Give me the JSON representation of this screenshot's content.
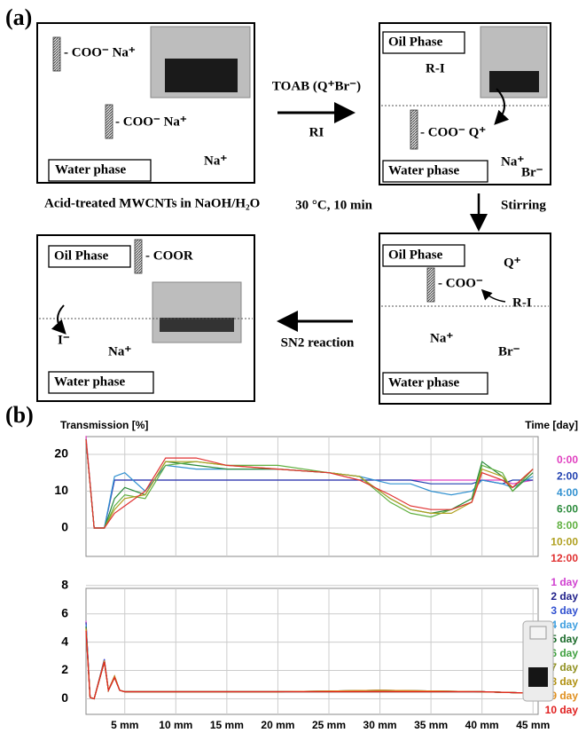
{
  "panel_a": {
    "label": "(a)",
    "start": {
      "groups": [
        "- COO⁻ Na⁺",
        "- COO⁻ Na⁺"
      ],
      "ion": "Na⁺",
      "water": "Water phase",
      "caption": "Acid-treated MWCNTs in NaOH/H₂O"
    },
    "step1": {
      "reagent": "TOAB (Q⁺Br⁻)",
      "reactant": "RI"
    },
    "transfer": {
      "oil": "Oil Phase",
      "reactant": "R-I",
      "group": "- COO⁻ Q⁺",
      "water": "Water phase",
      "cation": "Na⁺",
      "anion": "Br⁻"
    },
    "step2": {
      "condition": "30 °C, 10 min",
      "action": "Stirring"
    },
    "reaction": {
      "oil": "Oil Phase",
      "cation_q": "Q⁺",
      "group": "- COO⁻",
      "reactant": "R-I",
      "cation": "Na⁺",
      "anion": "Br⁻",
      "water": "Water phase"
    },
    "step3": {
      "label": "SN2 reaction"
    },
    "product": {
      "oil": "Oil Phase",
      "group": "- COOR",
      "anion": "I⁻",
      "cation": "Na⁺",
      "water": "Water phase"
    }
  },
  "panel_b": {
    "label": "(b)"
  },
  "chart_data": [
    {
      "type": "line",
      "y_label": "Transmission [%]",
      "legend_title": "Time [day]",
      "x": [
        1.2,
        2,
        3,
        4,
        5,
        7,
        9,
        12,
        15,
        20,
        25,
        28,
        31,
        33,
        35,
        37,
        39,
        40,
        42,
        43,
        45
      ],
      "xlim": [
        1.2,
        45.5
      ],
      "xticks": [
        5,
        10,
        15,
        20,
        25,
        30,
        35,
        40,
        45
      ],
      "ylim": [
        -7.7,
        24.8
      ],
      "yticks": [
        0,
        10,
        20
      ],
      "grid": true,
      "series": [
        {
          "name": "0:00",
          "color": "#e040c0",
          "values": [
            25,
            0,
            0,
            13,
            13,
            13,
            13,
            13,
            13,
            13,
            13,
            13,
            13,
            13,
            13,
            13,
            13,
            13,
            13,
            12,
            13
          ]
        },
        {
          "name": "2:00",
          "color": "#2040b0",
          "values": [
            24,
            0,
            0,
            13,
            13,
            13,
            13,
            13,
            13,
            13,
            13,
            13,
            13,
            13,
            12,
            12,
            12,
            13,
            12,
            13,
            13
          ]
        },
        {
          "name": "4:00",
          "color": "#3090d0",
          "values": [
            24,
            0,
            0,
            14,
            15,
            10,
            17,
            16,
            16,
            16,
            15,
            14,
            12,
            12,
            10,
            9,
            10,
            13,
            12,
            11,
            14
          ]
        },
        {
          "name": "6:00",
          "color": "#2a8a3a",
          "values": [
            24,
            0,
            0,
            8,
            11,
            9,
            18,
            17,
            16,
            16,
            15,
            14,
            8,
            5,
            4,
            5,
            8,
            18,
            14,
            10,
            15
          ]
        },
        {
          "name": "8:00",
          "color": "#60b040",
          "values": [
            24,
            0,
            0,
            6,
            9,
            8,
            17,
            18,
            17,
            17,
            15,
            14,
            7,
            4,
            3,
            5,
            7,
            17,
            15,
            10,
            16
          ]
        },
        {
          "name": "10:00",
          "color": "#b0a020",
          "values": [
            24,
            0,
            0,
            5,
            8,
            9,
            18,
            18,
            17,
            16,
            15,
            14,
            8,
            5,
            4,
            4,
            7,
            16,
            14,
            11,
            16
          ]
        },
        {
          "name": "12:00",
          "color": "#e03030",
          "values": [
            24,
            0,
            0,
            4,
            6,
            10,
            19,
            19,
            17,
            16,
            15,
            13,
            9,
            6,
            5,
            5,
            7,
            15,
            13,
            11,
            16
          ]
        }
      ]
    },
    {
      "type": "line",
      "x": [
        1.2,
        1.6,
        2,
        3,
        3.4,
        4,
        4.5,
        5,
        10,
        20,
        30,
        40,
        45
      ],
      "xlim": [
        1.2,
        45.5
      ],
      "xticks": [
        {
          "value": 5,
          "label": "5 mm"
        },
        {
          "value": 10,
          "label": "10 mm"
        },
        {
          "value": 15,
          "label": "15 mm"
        },
        {
          "value": 20,
          "label": "20 mm"
        },
        {
          "value": 25,
          "label": "25 mm"
        },
        {
          "value": 30,
          "label": "30 mm"
        },
        {
          "value": 35,
          "label": "35 mm"
        },
        {
          "value": 40,
          "label": "40 mm"
        },
        {
          "value": 45,
          "label": "45 mm"
        }
      ],
      "ylim": [
        -1.1,
        7.8
      ],
      "yticks": [
        0,
        2,
        4,
        6,
        8
      ],
      "grid": true,
      "series": [
        {
          "name": "1 day",
          "color": "#d040d0",
          "values": [
            5.5,
            0.1,
            0,
            2.8,
            0.6,
            1.6,
            0.6,
            0.5,
            0.5,
            0.5,
            0.5,
            0.5,
            0.4
          ]
        },
        {
          "name": "2 day",
          "color": "#20208a",
          "values": [
            5.4,
            0.1,
            0,
            2.7,
            0.6,
            1.5,
            0.6,
            0.5,
            0.5,
            0.5,
            0.5,
            0.5,
            0.4
          ]
        },
        {
          "name": "3 day",
          "color": "#3050d0",
          "values": [
            5.3,
            0.1,
            0,
            2.8,
            0.6,
            1.6,
            0.6,
            0.5,
            0.5,
            0.5,
            0.6,
            0.5,
            0.4
          ]
        },
        {
          "name": "4 day",
          "color": "#40a0e0",
          "values": [
            5.2,
            0.1,
            0,
            2.6,
            0.6,
            1.5,
            0.6,
            0.5,
            0.5,
            0.5,
            0.5,
            0.5,
            0.4
          ]
        },
        {
          "name": "5 day",
          "color": "#1a6a2a",
          "values": [
            5.1,
            0.1,
            0,
            2.7,
            0.6,
            1.6,
            0.6,
            0.5,
            0.5,
            0.5,
            0.6,
            0.5,
            0.4
          ]
        },
        {
          "name": "6 day",
          "color": "#40a040",
          "values": [
            5.0,
            0.1,
            0,
            2.6,
            0.6,
            1.5,
            0.6,
            0.5,
            0.5,
            0.5,
            0.5,
            0.5,
            0.4
          ]
        },
        {
          "name": "7 day",
          "color": "#909020",
          "values": [
            5.0,
            0.1,
            0,
            2.7,
            0.6,
            1.6,
            0.6,
            0.5,
            0.5,
            0.5,
            0.6,
            0.5,
            0.4
          ]
        },
        {
          "name": "8 day",
          "color": "#b09010",
          "values": [
            4.9,
            0.1,
            0,
            2.6,
            0.6,
            1.5,
            0.6,
            0.5,
            0.5,
            0.5,
            0.5,
            0.5,
            0.4
          ]
        },
        {
          "name": "9 day",
          "color": "#e09020",
          "values": [
            4.9,
            0.1,
            0,
            2.7,
            0.6,
            1.6,
            0.6,
            0.5,
            0.5,
            0.5,
            0.6,
            0.5,
            0.4
          ]
        },
        {
          "name": "10 day",
          "color": "#e02020",
          "values": [
            4.8,
            0.1,
            0,
            2.6,
            0.6,
            1.5,
            0.6,
            0.5,
            0.5,
            0.5,
            0.5,
            0.5,
            0.4
          ]
        }
      ]
    }
  ]
}
